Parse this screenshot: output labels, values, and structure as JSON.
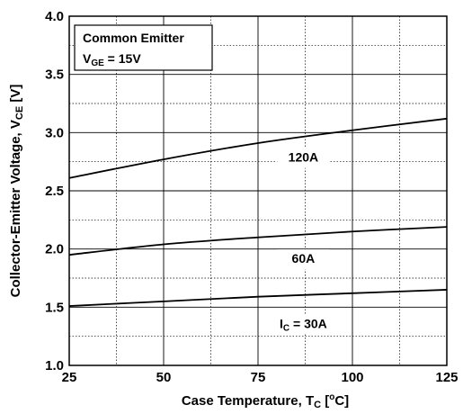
{
  "chart_data": {
    "type": "line",
    "xlabel": {
      "main": "Case Temperature, T",
      "sub": "C",
      "unit_pre": " [",
      "unit_sup": "o",
      "unit_post": "C]"
    },
    "ylabel": {
      "main": "Collector-Emitter Voltage, V",
      "sub": "CE",
      "unit": " [V]"
    },
    "xlim": [
      25,
      125
    ],
    "ylim": [
      1.0,
      4.0
    ],
    "x_ticks": [
      "25",
      "50",
      "75",
      "100",
      "125"
    ],
    "y_ticks": [
      "1.0",
      "1.5",
      "2.0",
      "2.5",
      "3.0",
      "3.5",
      "4.0"
    ],
    "grid": true,
    "legend": {
      "line1": "Common Emitter",
      "line2_main": "V",
      "line2_sub": "GE",
      "line2_rest": " = 15V"
    },
    "series": [
      {
        "name": "120A",
        "x": [
          25,
          50,
          75,
          100,
          125
        ],
        "y": [
          2.61,
          2.77,
          2.91,
          3.02,
          3.12
        ]
      },
      {
        "name": "60A",
        "x": [
          25,
          50,
          75,
          100,
          125
        ],
        "y": [
          1.95,
          2.04,
          2.1,
          2.15,
          2.19
        ]
      },
      {
        "name": "30A",
        "x": [
          25,
          50,
          75,
          100,
          125
        ],
        "y": [
          1.51,
          1.55,
          1.59,
          1.62,
          1.65
        ]
      }
    ],
    "series_labels": [
      {
        "text": "120A",
        "x": 87,
        "y": 2.75
      },
      {
        "text": "60A",
        "x": 87,
        "y": 1.88
      },
      {
        "main": "I",
        "sub": "C",
        "rest": " = 30A",
        "x": 87,
        "y": 1.32
      }
    ]
  }
}
